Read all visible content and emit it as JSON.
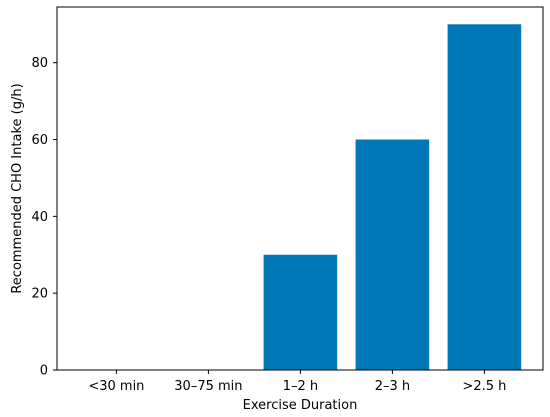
{
  "chart_data": {
    "type": "bar",
    "categories": [
      "<30 min",
      "30–75 min",
      "1–2 h",
      "2–3 h",
      ">2.5 h"
    ],
    "values": [
      0,
      0,
      30,
      60,
      90
    ],
    "title": "",
    "xlabel": "Exercise Duration",
    "ylabel": "Recommended CHO Intake (g/h)",
    "ylim": [
      0,
      94.5
    ],
    "yticks": [
      0,
      20,
      40,
      60,
      80
    ],
    "bar_color": "#0077b6",
    "grid": false,
    "legend": "none"
  }
}
